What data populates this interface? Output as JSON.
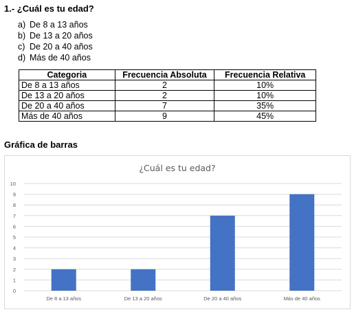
{
  "question": {
    "title": "1.- ¿Cuál es tu edad?",
    "options": [
      {
        "letter": "a)",
        "text": "De 8 a 13 años"
      },
      {
        "letter": "b)",
        "text": "De 13 a 20 años"
      },
      {
        "letter": "c)",
        "text": "De 20 a 40 años"
      },
      {
        "letter": "d)",
        "text": "Más de 40 años"
      }
    ]
  },
  "table": {
    "headers": [
      "Categoria",
      "Frecuencia Absoluta",
      "Frecuencia Relativa"
    ],
    "rows": [
      [
        "De 8 a 13 años",
        "2",
        "10%"
      ],
      [
        "De 13 a 20 años",
        "2",
        "10%"
      ],
      [
        "De 20 a 40 años",
        "7",
        "35%"
      ],
      [
        "Más de 40 años",
        "9",
        "45%"
      ]
    ]
  },
  "section_title": "Gráfica de barras",
  "colors": {
    "bar": "#4472c4",
    "grid": "#d9d9d9",
    "title": "#595959",
    "axis_text": "#595959"
  },
  "chart_data": {
    "type": "bar",
    "title": "¿Cuál es tu edad?",
    "categories": [
      "De 8 a 13 años",
      "De 13 a 20 años",
      "De 20 a 40 años",
      "Más de 40 años"
    ],
    "values": [
      2,
      2,
      7,
      9
    ],
    "xlabel": "",
    "ylabel": "",
    "ylim": [
      0,
      10
    ],
    "yticks": [
      "0",
      "1",
      "2",
      "3",
      "4",
      "5",
      "6",
      "7",
      "8",
      "9",
      "10"
    ],
    "grid": true,
    "legend": "none"
  }
}
